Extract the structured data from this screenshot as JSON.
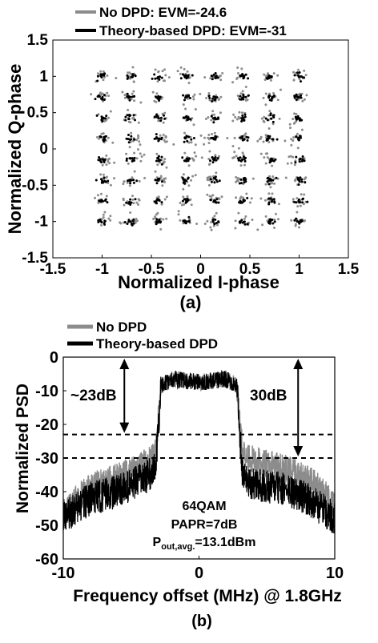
{
  "colors": {
    "no_dpd": "#8c8c8c",
    "dpd": "#000000"
  },
  "chart_data": [
    {
      "type": "scatter",
      "subtitle": "(a)",
      "xlabel": "Normalized I-phase",
      "ylabel": "Normalized Q-phase",
      "xlim": [
        -1.5,
        1.5
      ],
      "ylim": [
        -1.5,
        1.5
      ],
      "xticks": [
        "-1.5",
        "-1",
        "-0.5",
        "0",
        "0.5",
        "1",
        "1.5"
      ],
      "yticks": [
        "1.5",
        "1",
        "0.5",
        "0",
        "-0.5",
        "-1",
        "-1.5"
      ],
      "constellation_levels": [
        -1,
        -0.714,
        -0.429,
        -0.143,
        0.143,
        0.429,
        0.714,
        1
      ],
      "grid": false,
      "legend_position": "top-left",
      "series": [
        {
          "name": "No DPD: EVM=-24.6",
          "color": "#8c8c8c"
        },
        {
          "name": "Theory-based DPD: EVM=-31",
          "color": "#000000"
        }
      ]
    },
    {
      "type": "line",
      "subtitle": "(b)",
      "xlabel": "Frequency offset (MHz) @ 1.8GHz",
      "ylabel": "Normalized PSD",
      "xlim": [
        -10,
        10
      ],
      "ylim": [
        -60,
        0
      ],
      "xticks": [
        "-10",
        "0",
        "10"
      ],
      "yticks": [
        "0",
        "-10",
        "-20",
        "-30",
        "-40",
        "-50",
        "-60"
      ],
      "grid": false,
      "legend_position": "top-left",
      "series": [
        {
          "name": "No DPD",
          "color": "#8c8c8c",
          "x": [
            -10,
            -8,
            -6,
            -4,
            -3.2,
            -2.8,
            -2,
            0,
            2,
            2.8,
            3.2,
            4,
            6,
            8,
            10
          ],
          "y": [
            -45,
            -38,
            -35,
            -31,
            -28,
            -8,
            -6,
            -7,
            -6,
            -8,
            -27,
            -30,
            -32,
            -35,
            -43
          ]
        },
        {
          "name": "Theory-based DPD",
          "color": "#000000",
          "x": [
            -10,
            -8,
            -6,
            -4,
            -3.2,
            -2.8,
            -2,
            0,
            2,
            2.8,
            3.2,
            4,
            6,
            8,
            10
          ],
          "y": [
            -47,
            -41,
            -39,
            -35,
            -32,
            -8,
            -6,
            -7,
            -6,
            -8,
            -34,
            -37,
            -38,
            -41,
            -47
          ]
        }
      ],
      "annotations": [
        {
          "text": "~23dB",
          "arrow_from": 0,
          "arrow_to": -23
        },
        {
          "text": "30dB",
          "arrow_from": 0,
          "arrow_to": -30
        }
      ],
      "reference_lines": [
        -23,
        -30
      ],
      "info_text": {
        "line1": "64QAM",
        "line2": "PAPR=7dB",
        "line3_main": "P",
        "line3_sub": "out,avg.",
        "line3_rest": "=13.1dBm"
      }
    }
  ]
}
